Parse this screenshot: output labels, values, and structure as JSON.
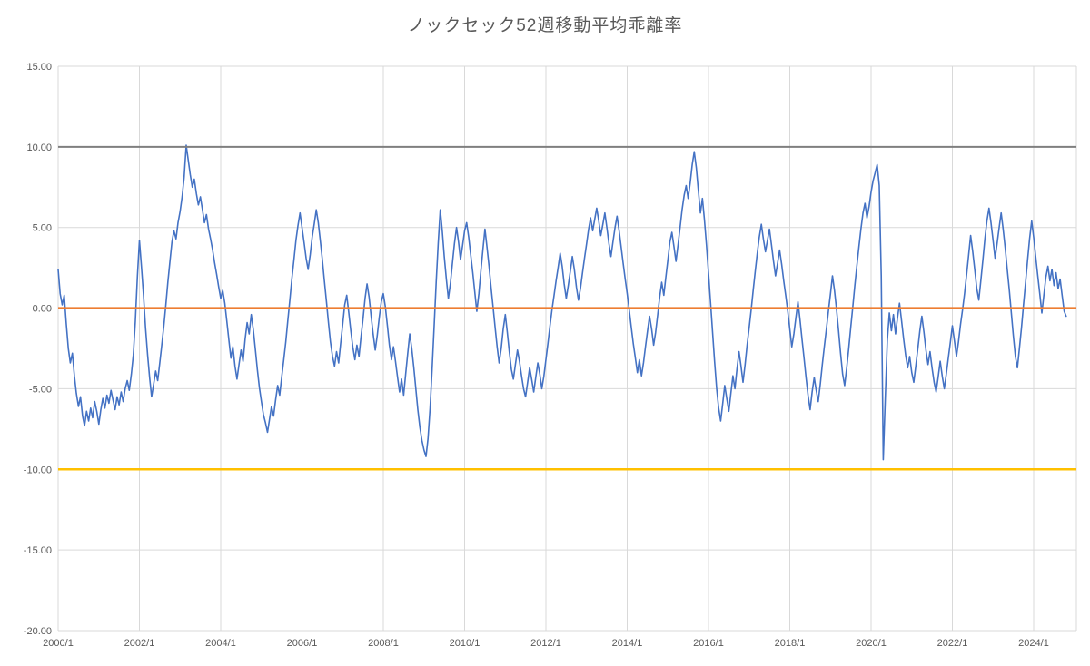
{
  "colors": {
    "background": "#ffffff",
    "gridline": "#d9d9d9",
    "tick_label": "#595959",
    "title": "#595959",
    "series_blue": "#4472c4",
    "ref_gray": "#7f7f7f",
    "ref_orange": "#ed7d31",
    "ref_gold": "#ffc000"
  },
  "chart_data": {
    "type": "line",
    "title": "ノックセック52週移動平均乖離率",
    "legend": "none",
    "grid": true,
    "x_axis": {
      "min": 2000,
      "max": 2025.05,
      "ticks": [
        {
          "value": 2000,
          "label": "2000/1"
        },
        {
          "value": 2002,
          "label": "2002/1"
        },
        {
          "value": 2004,
          "label": "2004/1"
        },
        {
          "value": 2006,
          "label": "2006/1"
        },
        {
          "value": 2008,
          "label": "2008/1"
        },
        {
          "value": 2010,
          "label": "2010/1"
        },
        {
          "value": 2012,
          "label": "2012/1"
        },
        {
          "value": 2014,
          "label": "2014/1"
        },
        {
          "value": 2016,
          "label": "2016/1"
        },
        {
          "value": 2018,
          "label": "2018/1"
        },
        {
          "value": 2020,
          "label": "2020/1"
        },
        {
          "value": 2022,
          "label": "2022/1"
        },
        {
          "value": 2024,
          "label": "2024/1"
        }
      ]
    },
    "y_axis": {
      "min": -20,
      "max": 15,
      "step": 5,
      "ticks": [
        {
          "value": 15,
          "label": "15.00"
        },
        {
          "value": 10,
          "label": "10.00"
        },
        {
          "value": 5,
          "label": "5.00"
        },
        {
          "value": 0,
          "label": "0.00"
        },
        {
          "value": -5,
          "label": "-5.00"
        },
        {
          "value": -10,
          "label": "-10.00"
        },
        {
          "value": -15,
          "label": "-15.00"
        },
        {
          "value": -20,
          "label": "-20.00"
        }
      ]
    },
    "reference_lines": [
      {
        "value": 10,
        "color": "#7f7f7f",
        "width": 2,
        "name": "plus-10-reference-line"
      },
      {
        "value": 0,
        "color": "#ed7d31",
        "width": 2.5,
        "name": "zero-reference-line"
      },
      {
        "value": -10,
        "color": "#ffc000",
        "width": 2.5,
        "name": "minus-10-reference-line"
      }
    ],
    "series": [
      {
        "name": "52週移動平均乖離率",
        "key": "deviation",
        "color": "#4472c4",
        "width": 1.6,
        "x_start": 2000.0,
        "x_step": 0.05,
        "values": [
          2.4,
          0.9,
          0.2,
          0.8,
          -1.0,
          -2.5,
          -3.4,
          -2.8,
          -4.2,
          -5.3,
          -6.1,
          -5.5,
          -6.7,
          -7.3,
          -6.4,
          -7.0,
          -6.2,
          -6.8,
          -5.8,
          -6.4,
          -7.2,
          -6.3,
          -5.6,
          -6.2,
          -5.4,
          -5.9,
          -5.1,
          -5.7,
          -6.3,
          -5.5,
          -6.0,
          -5.2,
          -5.8,
          -5.0,
          -4.5,
          -5.1,
          -4.1,
          -2.9,
          -0.8,
          2.0,
          4.2,
          2.6,
          0.8,
          -1.2,
          -2.9,
          -4.3,
          -5.5,
          -4.7,
          -3.9,
          -4.5,
          -3.4,
          -2.3,
          -1.1,
          0.2,
          1.6,
          2.9,
          4.1,
          4.8,
          4.3,
          5.3,
          6.0,
          6.9,
          8.1,
          10.1,
          9.2,
          8.3,
          7.5,
          8.0,
          7.1,
          6.4,
          6.9,
          6.1,
          5.3,
          5.8,
          4.9,
          4.3,
          3.6,
          2.8,
          2.1,
          1.3,
          0.6,
          1.1,
          0.3,
          -0.8,
          -2.0,
          -3.1,
          -2.4,
          -3.6,
          -4.4,
          -3.5,
          -2.6,
          -3.3,
          -1.9,
          -0.9,
          -1.6,
          -0.4,
          -1.3,
          -2.5,
          -3.8,
          -4.9,
          -5.8,
          -6.6,
          -7.1,
          -7.7,
          -6.9,
          -6.1,
          -6.7,
          -5.7,
          -4.8,
          -5.4,
          -4.3,
          -3.2,
          -2.1,
          -0.8,
          0.5,
          1.8,
          3.0,
          4.2,
          5.1,
          5.9,
          5.0,
          4.1,
          3.1,
          2.4,
          3.3,
          4.4,
          5.2,
          6.1,
          5.3,
          4.2,
          3.0,
          1.7,
          0.4,
          -0.9,
          -2.1,
          -3.0,
          -3.6,
          -2.7,
          -3.4,
          -2.2,
          -1.0,
          0.2,
          0.8,
          -0.3,
          -1.4,
          -2.4,
          -3.2,
          -2.3,
          -3.0,
          -1.8,
          -0.7,
          0.6,
          1.5,
          0.7,
          -0.5,
          -1.6,
          -2.6,
          -1.7,
          -0.6,
          0.4,
          0.9,
          0.1,
          -1.1,
          -2.3,
          -3.2,
          -2.4,
          -3.3,
          -4.3,
          -5.2,
          -4.4,
          -5.4,
          -4.1,
          -2.8,
          -1.6,
          -2.5,
          -3.7,
          -5.0,
          -6.3,
          -7.4,
          -8.2,
          -8.8,
          -9.2,
          -8.1,
          -6.2,
          -3.8,
          -1.2,
          1.6,
          4.0,
          6.1,
          4.8,
          3.2,
          1.8,
          0.6,
          1.5,
          2.8,
          4.0,
          5.0,
          4.1,
          3.0,
          3.9,
          4.8,
          5.3,
          4.4,
          3.3,
          2.2,
          1.0,
          -0.2,
          0.9,
          2.3,
          3.6,
          4.9,
          3.8,
          2.6,
          1.3,
          0.1,
          -1.2,
          -2.4,
          -3.4,
          -2.5,
          -1.3,
          -0.4,
          -1.5,
          -2.7,
          -3.8,
          -4.4,
          -3.5,
          -2.6,
          -3.3,
          -4.2,
          -5.0,
          -5.5,
          -4.6,
          -3.7,
          -4.4,
          -5.2,
          -4.3,
          -3.4,
          -4.1,
          -5.0,
          -4.2,
          -3.2,
          -2.2,
          -1.1,
          -0.1,
          0.8,
          1.7,
          2.5,
          3.4,
          2.6,
          1.5,
          0.6,
          1.4,
          2.3,
          3.2,
          2.4,
          1.3,
          0.5,
          1.2,
          2.2,
          3.1,
          4.0,
          4.9,
          5.6,
          4.8,
          5.5,
          6.2,
          5.4,
          4.5,
          5.2,
          5.9,
          5.0,
          4.0,
          3.2,
          4.1,
          5.0,
          5.7,
          4.8,
          3.8,
          2.8,
          1.8,
          0.9,
          -0.1,
          -1.2,
          -2.2,
          -3.1,
          -4.0,
          -3.2,
          -4.2,
          -3.4,
          -2.4,
          -1.4,
          -0.5,
          -1.3,
          -2.3,
          -1.5,
          -0.4,
          0.7,
          1.6,
          0.8,
          1.9,
          3.0,
          4.1,
          4.7,
          3.8,
          2.9,
          3.9,
          5.0,
          6.1,
          7.0,
          7.6,
          6.8,
          7.8,
          8.9,
          9.7,
          8.7,
          7.3,
          5.9,
          6.8,
          5.5,
          3.9,
          2.2,
          0.4,
          -1.5,
          -3.3,
          -5.0,
          -6.2,
          -7.0,
          -5.9,
          -4.8,
          -5.6,
          -6.4,
          -5.3,
          -4.2,
          -5.0,
          -3.8,
          -2.7,
          -3.6,
          -4.6,
          -3.5,
          -2.3,
          -1.2,
          -0.1,
          1.1,
          2.3,
          3.4,
          4.4,
          5.2,
          4.3,
          3.5,
          4.2,
          4.9,
          3.9,
          2.9,
          2.0,
          2.8,
          3.6,
          2.7,
          1.7,
          0.8,
          -0.2,
          -1.3,
          -2.4,
          -1.6,
          -0.6,
          0.4,
          -0.7,
          -1.9,
          -3.1,
          -4.3,
          -5.4,
          -6.3,
          -5.2,
          -4.3,
          -5.1,
          -5.8,
          -4.7,
          -3.5,
          -2.4,
          -1.3,
          -0.2,
          0.9,
          2.0,
          1.1,
          -0.1,
          -1.4,
          -2.8,
          -4.1,
          -4.8,
          -3.7,
          -2.5,
          -1.2,
          0.1,
          1.4,
          2.6,
          3.8,
          4.9,
          5.9,
          6.5,
          5.6,
          6.3,
          7.2,
          7.9,
          8.4,
          8.9,
          7.6,
          2.0,
          -9.4,
          -5.5,
          -2.0,
          -0.3,
          -1.4,
          -0.4,
          -1.6,
          -0.6,
          0.3,
          -0.8,
          -1.9,
          -2.9,
          -3.7,
          -3.0,
          -4.0,
          -4.6,
          -3.6,
          -2.5,
          -1.4,
          -0.5,
          -1.5,
          -2.6,
          -3.5,
          -2.7,
          -3.7,
          -4.6,
          -5.2,
          -4.3,
          -3.3,
          -4.2,
          -5.0,
          -4.1,
          -3.1,
          -2.1,
          -1.1,
          -2.0,
          -3.0,
          -2.1,
          -1.0,
          -0.1,
          0.9,
          2.1,
          3.3,
          4.5,
          3.5,
          2.4,
          1.2,
          0.5,
          1.7,
          3.0,
          4.3,
          5.4,
          6.2,
          5.3,
          4.2,
          3.1,
          4.0,
          5.0,
          5.9,
          4.9,
          3.7,
          2.4,
          1.1,
          -0.3,
          -1.7,
          -3.0,
          -3.7,
          -2.5,
          -1.2,
          0.2,
          1.6,
          3.0,
          4.3,
          5.4,
          4.4,
          3.2,
          2.0,
          0.9,
          -0.3,
          0.8,
          1.9,
          2.6,
          1.7,
          2.4,
          1.4,
          2.2,
          1.2,
          1.8,
          0.8,
          -0.2,
          -0.5
        ]
      }
    ]
  }
}
